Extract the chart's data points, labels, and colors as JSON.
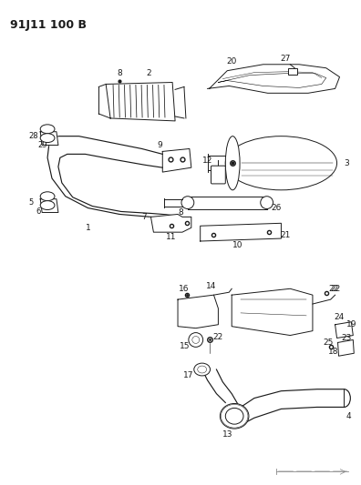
{
  "title": "91J11 100 B",
  "bg_color": "#ffffff",
  "line_color": "#1a1a1a",
  "title_fontsize": 9,
  "label_fontsize": 6.5,
  "fig_width": 3.96,
  "fig_height": 5.33,
  "dpi": 100
}
